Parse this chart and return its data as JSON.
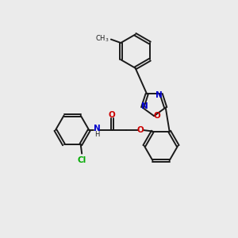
{
  "background_color": "#ebebeb",
  "bond_color": "#1a1a1a",
  "N_color": "#0000cc",
  "O_color": "#cc0000",
  "Cl_color": "#00aa00",
  "figsize": [
    3.0,
    3.0
  ],
  "dpi": 100,
  "xlim": [
    0,
    10
  ],
  "ylim": [
    0,
    10
  ]
}
